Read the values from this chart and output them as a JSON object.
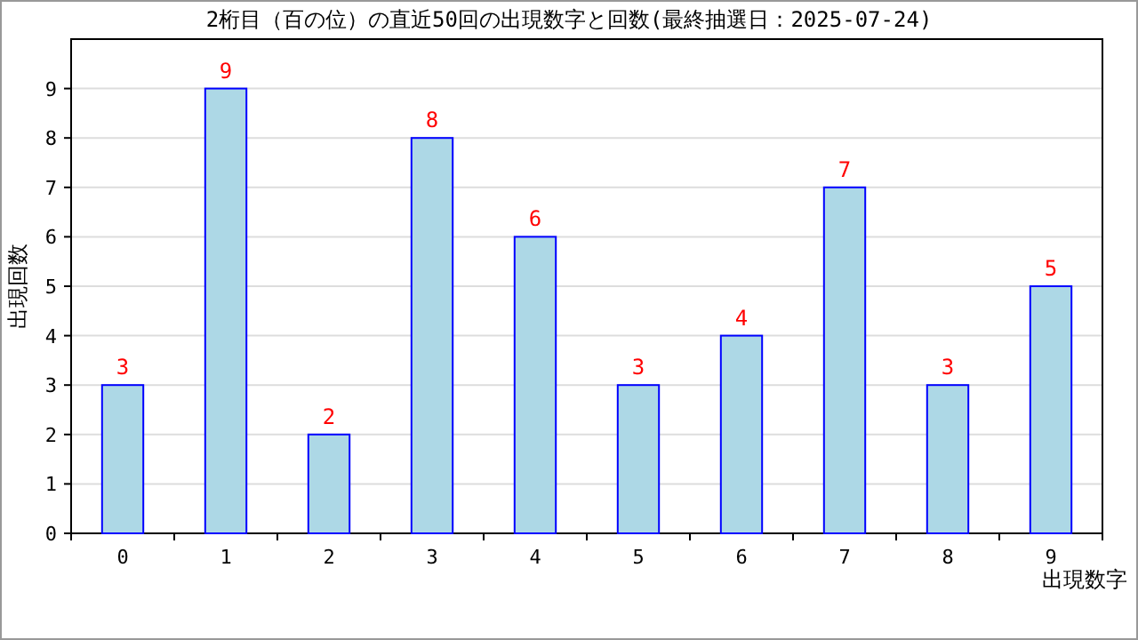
{
  "chart_data": {
    "type": "bar",
    "title": "2桁目（百の位）の直近50回の出現数字と回数(最終抽選日：2025-07-24)",
    "xlabel": "出現数字",
    "ylabel": "出現回数",
    "categories": [
      "0",
      "1",
      "2",
      "3",
      "4",
      "5",
      "6",
      "7",
      "8",
      "9"
    ],
    "values": [
      3,
      9,
      2,
      8,
      6,
      3,
      4,
      7,
      3,
      5
    ],
    "color": "#add8e6",
    "ylim": [
      0,
      10
    ],
    "yticks": [
      0,
      1,
      2,
      3,
      4,
      5,
      6,
      7,
      8,
      9
    ],
    "grid": "y",
    "data_labels": true
  }
}
